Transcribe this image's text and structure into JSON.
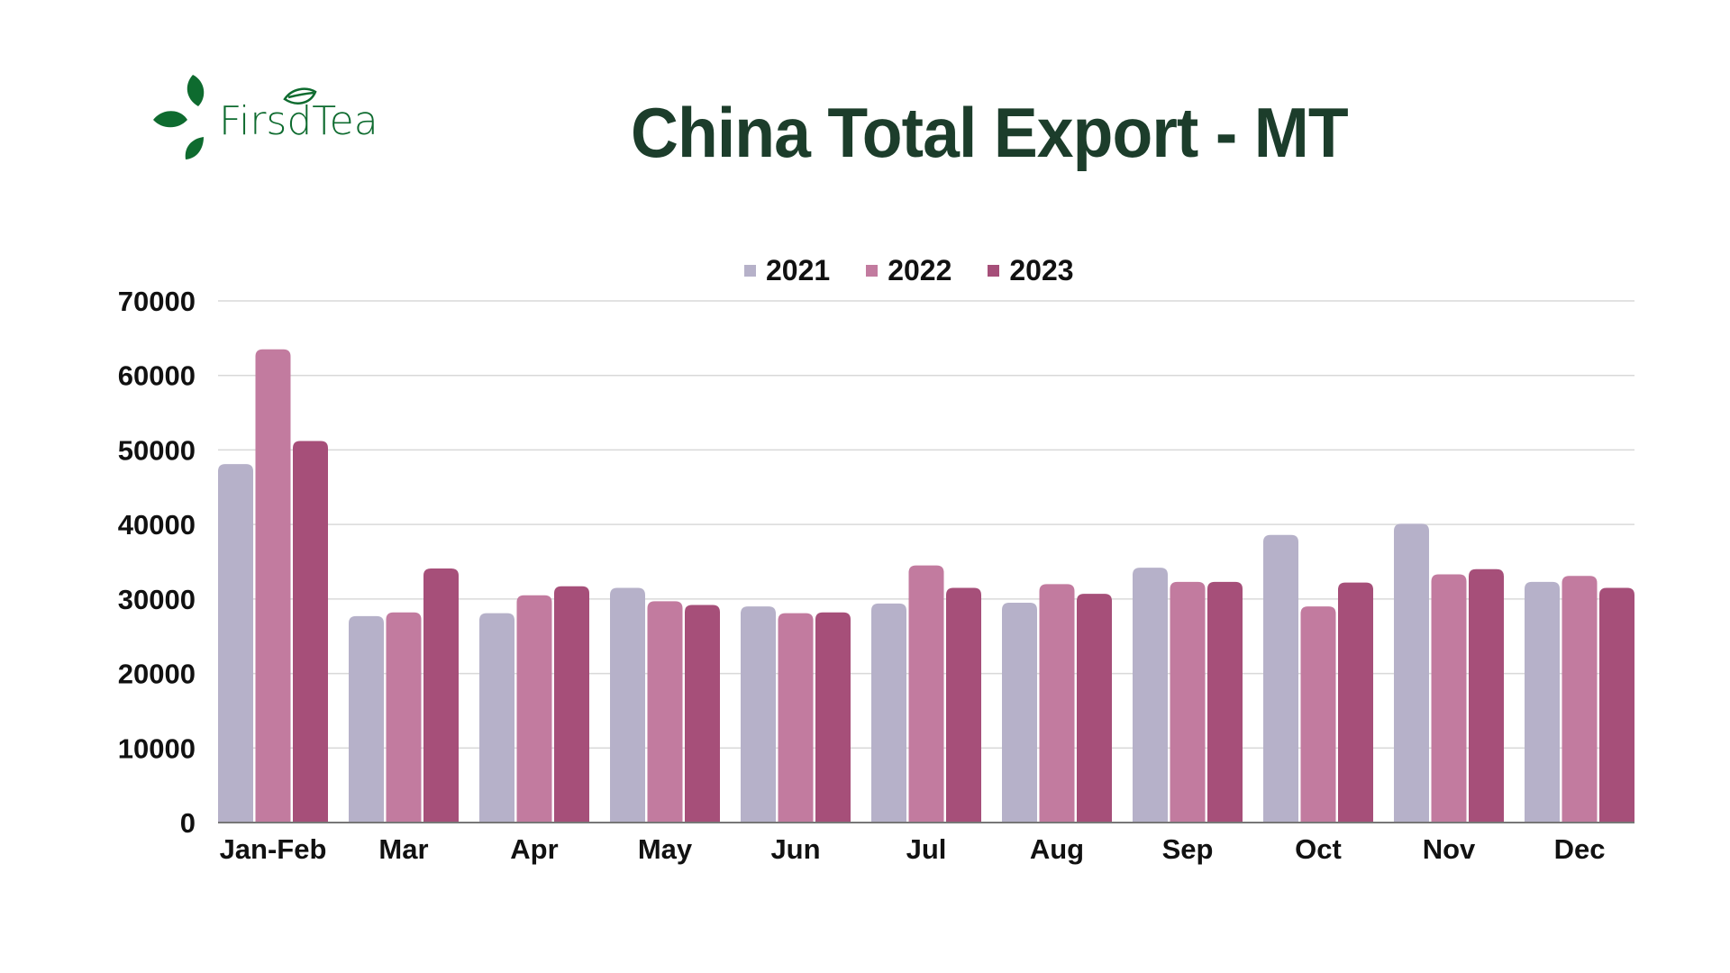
{
  "logo": {
    "text": "FirsdTea",
    "color": "#0e6b2f"
  },
  "title": "China Total Export - MT",
  "chart_data": {
    "type": "bar",
    "title": "China Total Export - MT",
    "xlabel": "",
    "ylabel": "",
    "ylim": [
      0,
      70000
    ],
    "yticks": [
      0,
      10000,
      20000,
      30000,
      40000,
      50000,
      60000,
      70000
    ],
    "grid": true,
    "legend_position": "top",
    "categories": [
      "Jan-Feb",
      "Mar",
      "Apr",
      "May",
      "Jun",
      "Jul",
      "Aug",
      "Sep",
      "Oct",
      "Nov",
      "Dec"
    ],
    "series": [
      {
        "name": "2021",
        "color": "#b6b1c9",
        "values": [
          48100,
          27700,
          28100,
          31500,
          29000,
          29400,
          29500,
          34200,
          38600,
          40100,
          32300
        ]
      },
      {
        "name": "2022",
        "color": "#c27b9f",
        "values": [
          63500,
          28200,
          30500,
          29700,
          28100,
          34500,
          32000,
          32300,
          29000,
          33300,
          33100
        ]
      },
      {
        "name": "2023",
        "color": "#a64f79",
        "values": [
          51200,
          34100,
          31700,
          29200,
          28200,
          31500,
          30700,
          32300,
          32200,
          34000,
          31500
        ]
      }
    ]
  },
  "colors": {
    "title": "#1c3d2b",
    "grid": "#d9d9d9",
    "axis": "#777777"
  }
}
